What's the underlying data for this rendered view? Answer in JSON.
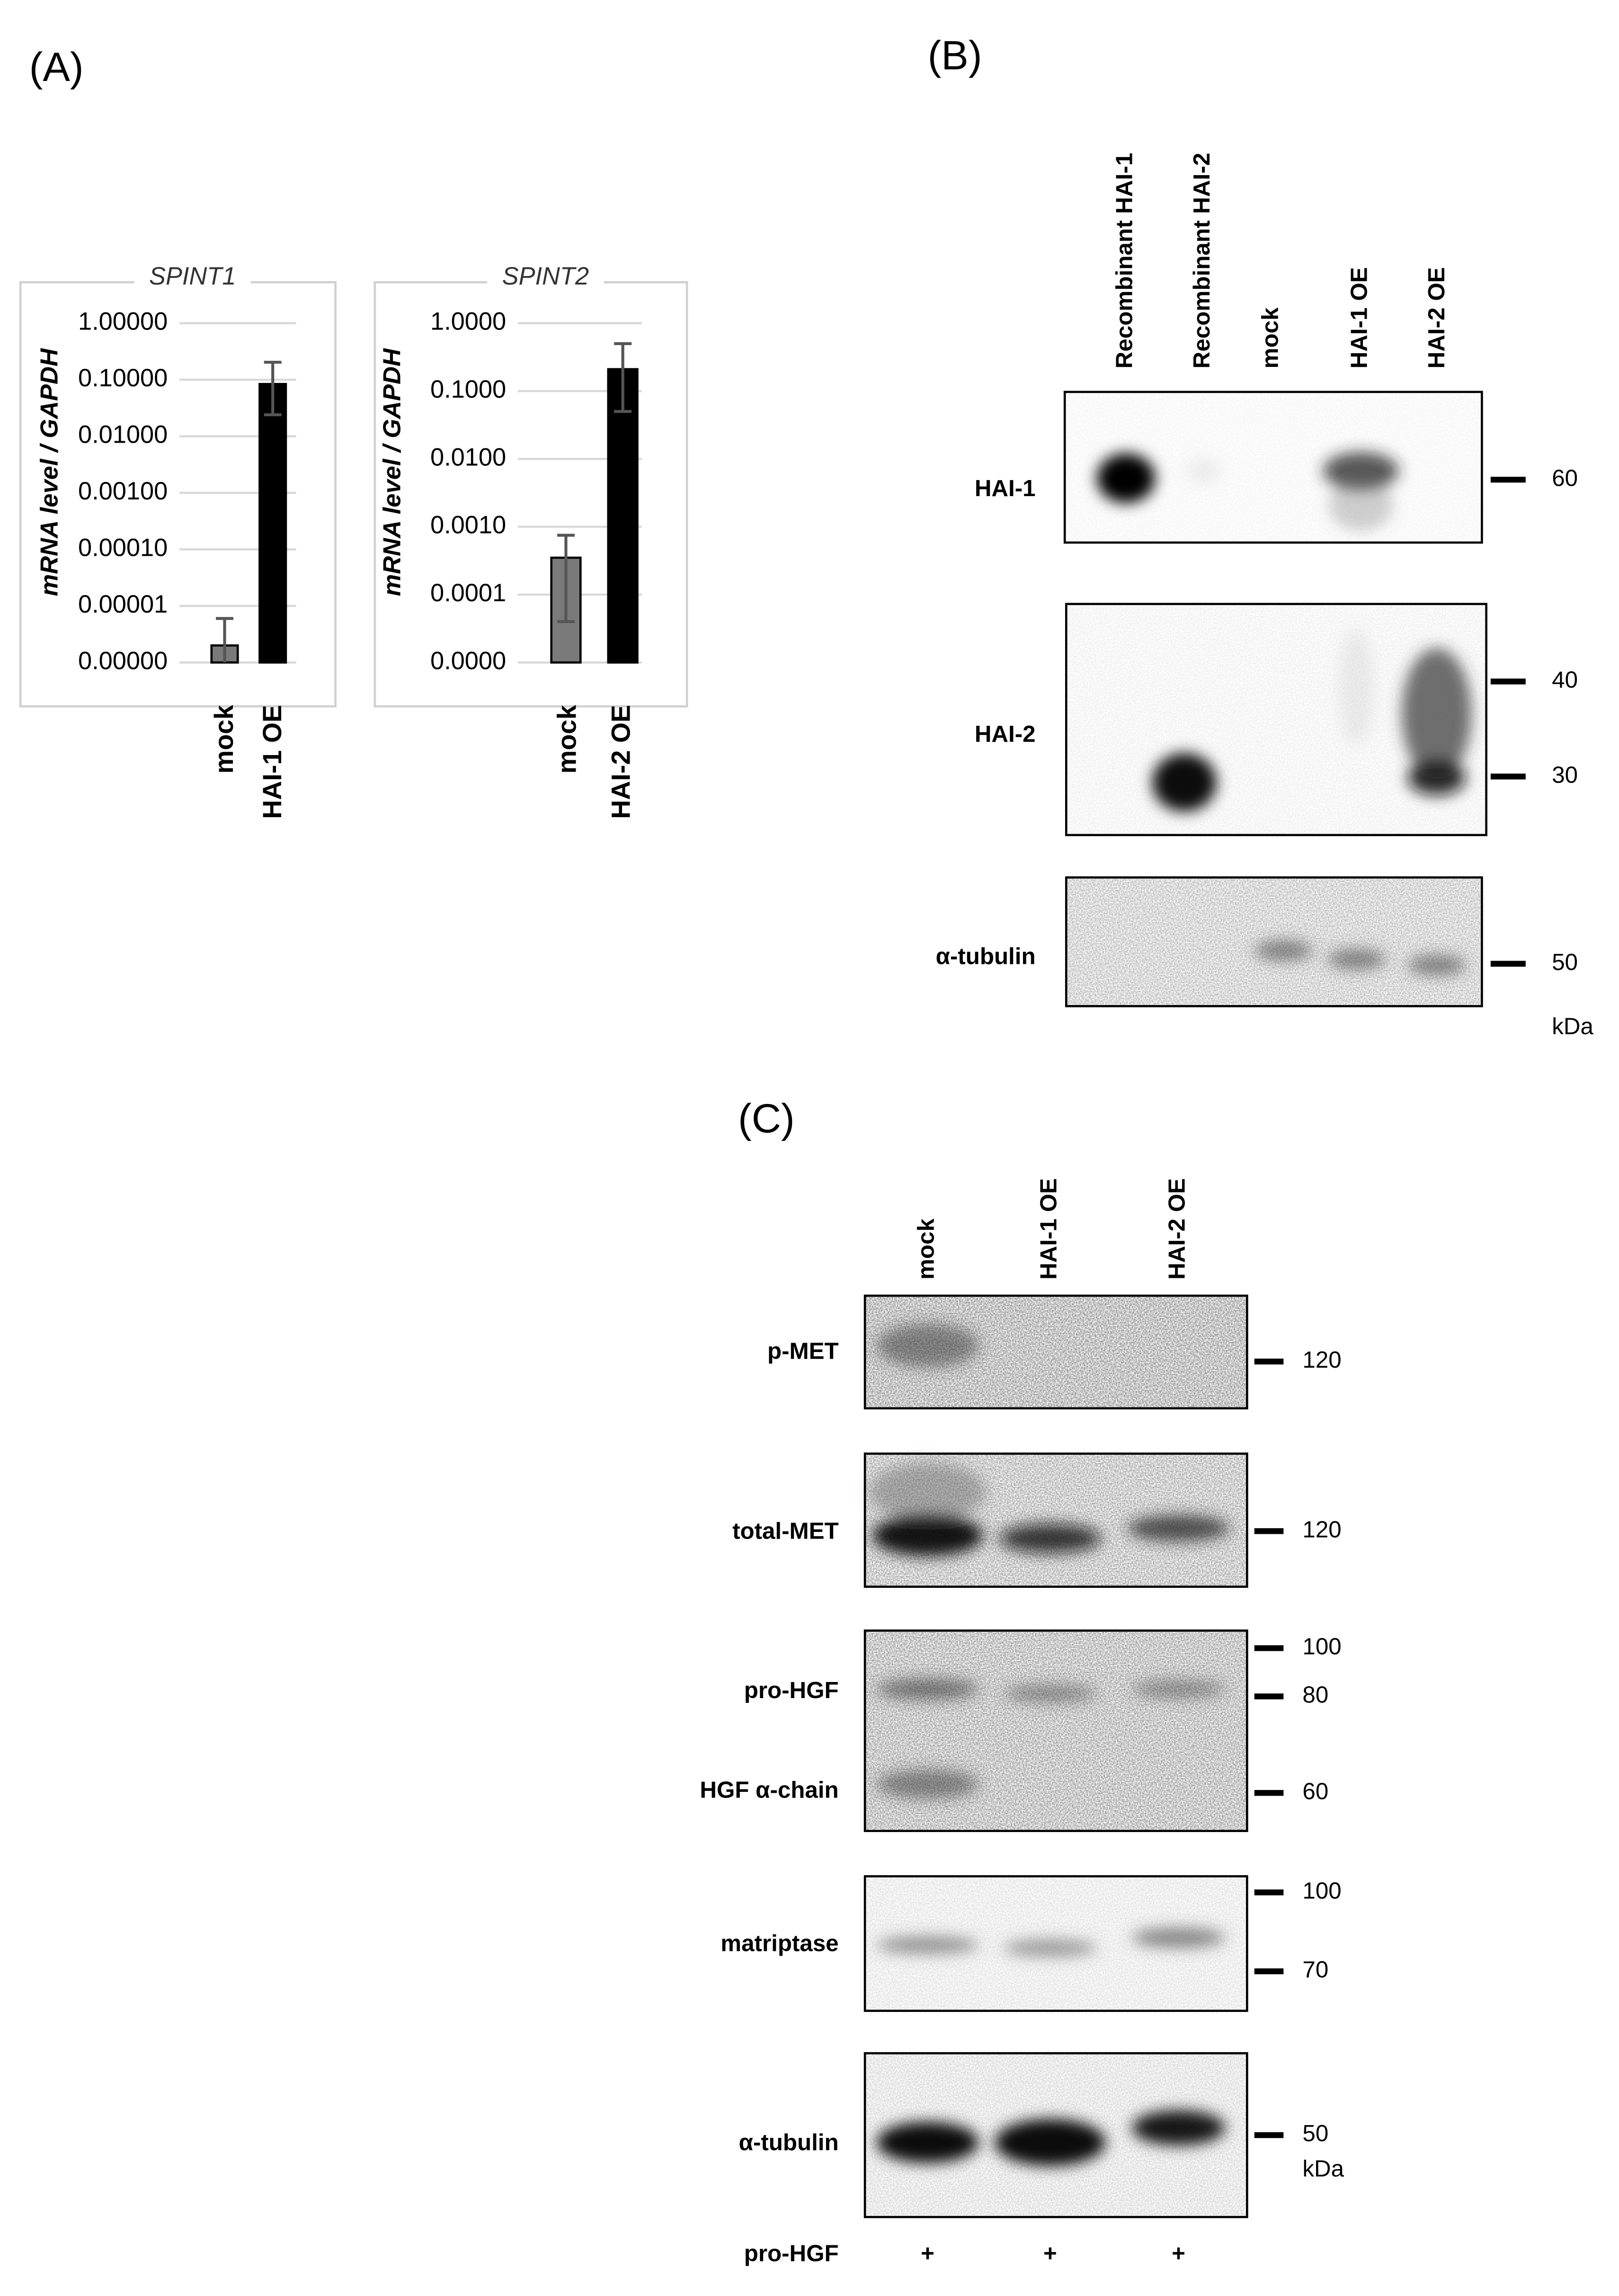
{
  "panels": {
    "a": "(A)",
    "b": "(B)",
    "c": "(C)"
  },
  "chart_data": [
    {
      "type": "bar",
      "title": "SPINT1",
      "y_label": "mRNA level / GAPDH",
      "categories": [
        "mock",
        "HAI-1 OE"
      ],
      "values": [
        2e-06,
        0.084
      ],
      "errors_plus": [
        4e-06,
        0.12
      ],
      "errors_minus": [
        1.5e-06,
        0.06
      ],
      "colors": [
        "#7a7a7a",
        "#000000"
      ],
      "log_y": true,
      "grid": true,
      "ylim": [
        1e-06,
        1
      ],
      "yticks": [
        {
          "value": 1,
          "label": "1.00000"
        },
        {
          "value": 0.1,
          "label": "0.10000"
        },
        {
          "value": 0.01,
          "label": "0.01000"
        },
        {
          "value": 0.001,
          "label": "0.00100"
        },
        {
          "value": 0.0001,
          "label": "0.00010"
        },
        {
          "value": 1e-05,
          "label": "0.00001"
        },
        {
          "value": 1e-06,
          "label": "0.00000"
        }
      ]
    },
    {
      "type": "bar",
      "title": "SPINT2",
      "y_label": "mRNA level / GAPDH",
      "categories": [
        "mock",
        "HAI-2 OE"
      ],
      "values": [
        0.00035,
        0.21
      ],
      "errors_plus": [
        0.0004,
        0.29
      ],
      "errors_minus": [
        0.00031,
        0.16
      ],
      "colors": [
        "#7a7a7a",
        "#000000"
      ],
      "log_y": true,
      "grid": true,
      "ylim": [
        1e-05,
        1
      ],
      "yticks": [
        {
          "value": 1,
          "label": "1.0000"
        },
        {
          "value": 0.1,
          "label": "0.1000"
        },
        {
          "value": 0.01,
          "label": "0.0100"
        },
        {
          "value": 0.001,
          "label": "0.0010"
        },
        {
          "value": 0.0001,
          "label": "0.0001"
        },
        {
          "value": 1e-05,
          "label": "0.0000"
        }
      ]
    }
  ],
  "blot_b": {
    "lanes": [
      "Recombinant HAI-1",
      "Recombinant HAI-2",
      "mock",
      "HAI-1 OE",
      "HAI-2 OE"
    ],
    "rows": [
      {
        "labels": [
          "HAI-1"
        ],
        "markers": [
          60
        ]
      },
      {
        "labels": [
          "HAI-2"
        ],
        "markers": [
          40,
          30
        ]
      },
      {
        "labels": [
          "α-tubulin"
        ],
        "markers": [
          50
        ]
      }
    ],
    "unit": "kDa"
  },
  "blot_c": {
    "lanes": [
      "mock",
      "HAI-1 OE",
      "HAI-2 OE"
    ],
    "rows": [
      {
        "labels": [
          "p-MET"
        ],
        "markers": [
          120
        ]
      },
      {
        "labels": [
          "total-MET"
        ],
        "markers": [
          120
        ]
      },
      {
        "labels": [
          "pro-HGF",
          "HGF α-chain"
        ],
        "markers": [
          100,
          80,
          60
        ]
      },
      {
        "labels": [
          "matriptase"
        ],
        "markers": [
          100,
          70
        ]
      },
      {
        "labels": [
          "α-tubulin"
        ],
        "markers": [
          50
        ]
      }
    ],
    "unit": "kDa",
    "treatment": {
      "label": "pro-HGF",
      "values": [
        "+",
        "+",
        "+"
      ]
    }
  }
}
